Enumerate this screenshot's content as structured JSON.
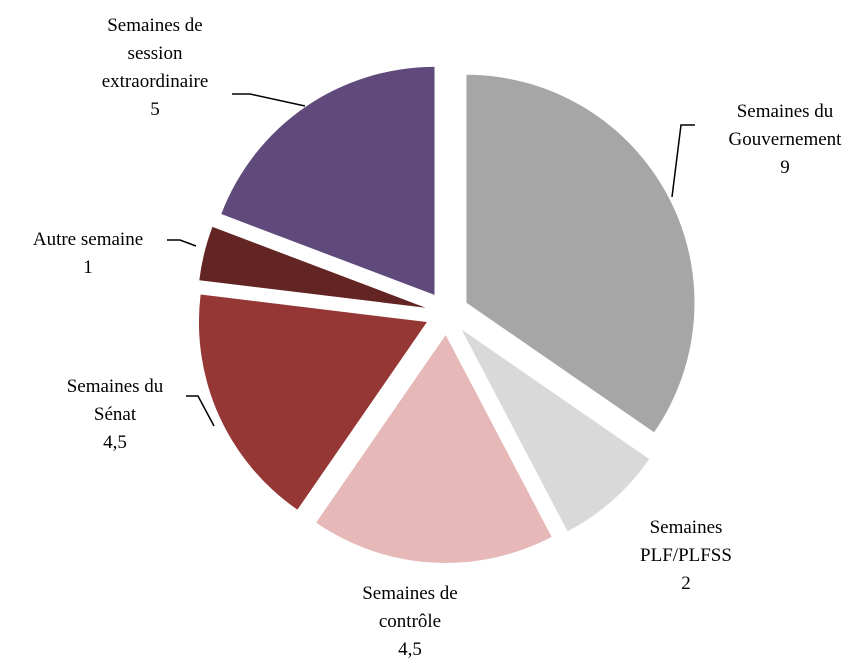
{
  "chart_data": {
    "type": "pie",
    "categories": [
      "Semaines du Gouvernement",
      "Semaines PLF/PLFSS",
      "Semaines de contrôle",
      "Semaines du Sénat",
      "Autre semaine",
      "Semaines de session extraordinaire"
    ],
    "values": [
      9,
      2,
      4.5,
      4.5,
      1,
      5
    ],
    "value_labels": [
      "9",
      "2",
      "4,5",
      "4,5",
      "1",
      "5"
    ],
    "colors": [
      "#a6a6a6",
      "#d9d9d9",
      "#e6b9b8",
      "#953735",
      "#632523",
      "#604a7b"
    ]
  }
}
